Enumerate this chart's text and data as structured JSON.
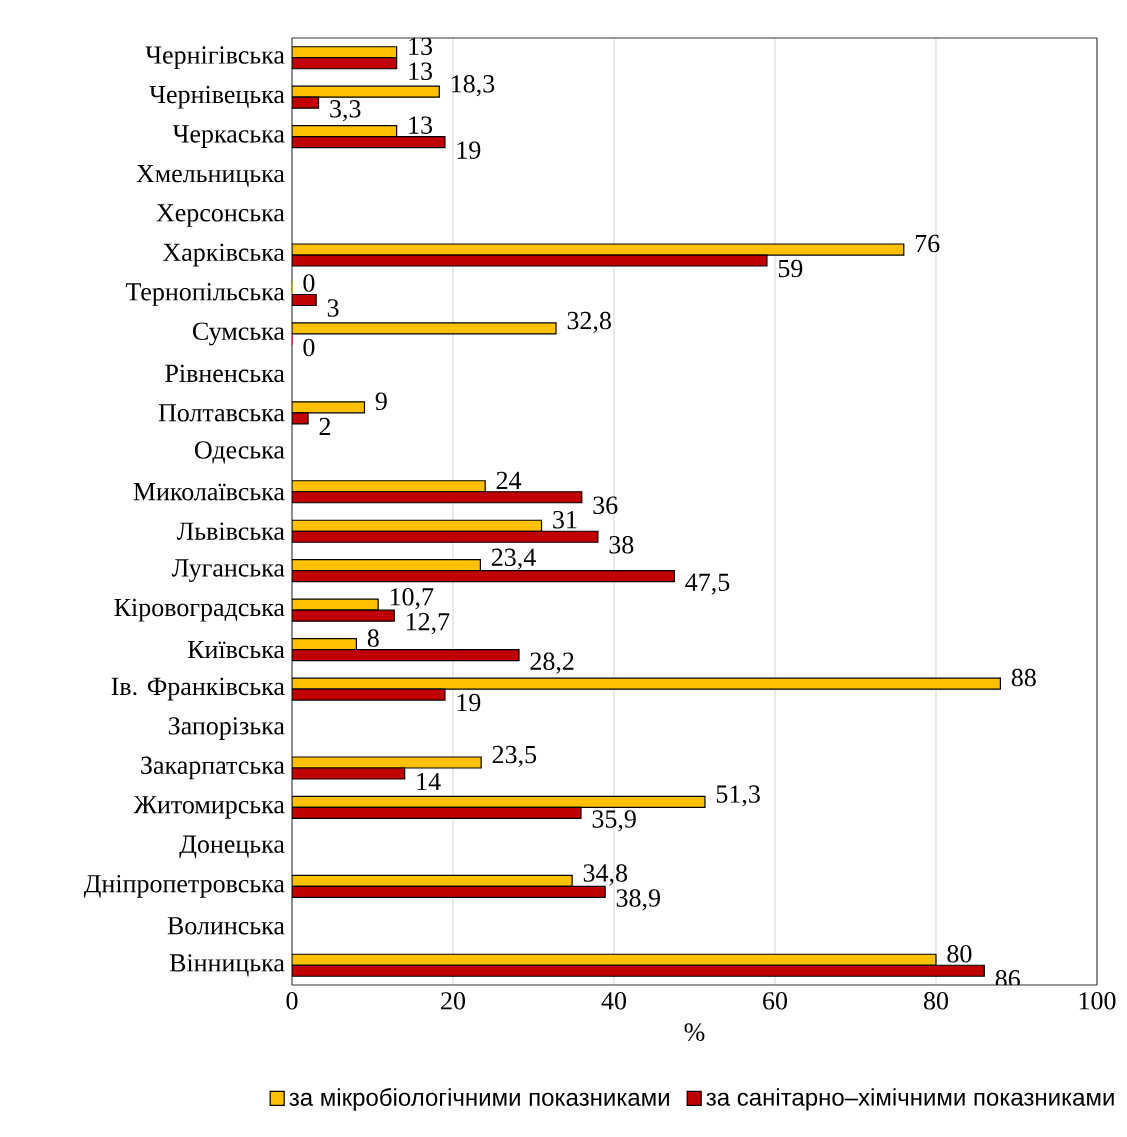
{
  "chart_data": {
    "type": "bar",
    "orientation": "horizontal",
    "xlabel": "%",
    "xlim": [
      0,
      100
    ],
    "xticks": [
      0,
      20,
      40,
      60,
      80,
      100
    ],
    "grid": "x",
    "legend": "bottom",
    "categories": [
      "Чернігівська",
      "Чернівецька",
      "Черкаська",
      "Хмельницька",
      "Херсонська",
      "Харківська",
      "Тернопільська",
      "Сумська",
      "Рівненська",
      "Полтавська",
      "Одеська",
      "Миколаївська",
      "Львівська",
      "Луганська",
      "Кіровоградська",
      "Київська",
      "Ів. Франківська",
      "Запорізька",
      "Закарпатська",
      "Житомирська",
      "Донецька",
      "Дніпропетровська",
      "Волинська",
      "Вінницька"
    ],
    "series": [
      {
        "name": "за мікробіологічними показниками",
        "color": "#ffc000",
        "values": [
          13,
          18.3,
          13,
          null,
          null,
          76,
          0,
          32.8,
          null,
          9,
          null,
          24,
          31,
          23.4,
          10.7,
          8,
          88,
          null,
          23.5,
          51.3,
          null,
          34.8,
          null,
          80
        ],
        "value_labels": [
          "13",
          "18,3",
          "13",
          null,
          null,
          "76",
          "0",
          "32,8",
          null,
          "9",
          null,
          "24",
          "31",
          "23,4",
          "10,7",
          "8",
          "88",
          null,
          "23,5",
          "51,3",
          null,
          "34,8",
          null,
          "80"
        ]
      },
      {
        "name": "за санітарно–хімічними показниками",
        "color": "#c00000",
        "values": [
          13,
          3.3,
          19,
          null,
          null,
          59,
          3,
          0,
          null,
          2,
          null,
          36,
          38,
          47.5,
          12.7,
          28.2,
          19,
          null,
          14,
          35.9,
          null,
          38.9,
          null,
          86
        ],
        "value_labels": [
          "13",
          "3,3",
          "19",
          null,
          null,
          "59",
          "3",
          "0",
          null,
          "2",
          null,
          "36",
          "38",
          "47,5",
          "12,7",
          "28,2",
          "19",
          null,
          "14",
          "35,9",
          null,
          "38,9",
          null,
          "86"
        ]
      }
    ]
  }
}
